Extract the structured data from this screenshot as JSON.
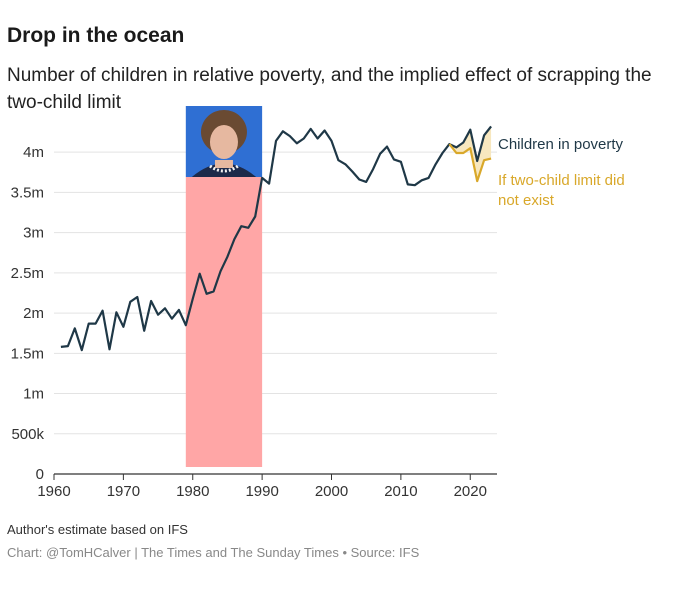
{
  "title": "Drop in the ocean",
  "subtitle": "Number of children in relative poverty, and the implied effect of scrapping the two-child limit",
  "note": "Author's estimate based on IFS",
  "credit": "Chart: @TomHCalver | The Times and The Sunday Times • Source: IFS",
  "colors": {
    "poverty": "#1f3847",
    "no_limit": "#d9a82a",
    "no_limit_fill": "#f7e7bf",
    "highlight": "#ffa6a6",
    "grid": "#e3e3e3",
    "axis": "#333333"
  },
  "chart_data": {
    "type": "line",
    "xlim": [
      1960,
      2024
    ],
    "ylim": [
      0,
      4400000
    ],
    "yticks": [
      {
        "value": 0,
        "label": "0"
      },
      {
        "value": 500000,
        "label": "500k"
      },
      {
        "value": 1000000,
        "label": "1m"
      },
      {
        "value": 1500000,
        "label": "1.5m"
      },
      {
        "value": 2000000,
        "label": "2m"
      },
      {
        "value": 2500000,
        "label": "2.5m"
      },
      {
        "value": 3000000,
        "label": "3m"
      },
      {
        "value": 3500000,
        "label": "3.5m"
      },
      {
        "value": 4000000,
        "label": "4m"
      }
    ],
    "xticks": [
      {
        "value": 1960,
        "label": "1960"
      },
      {
        "value": 1970,
        "label": "1970"
      },
      {
        "value": 1980,
        "label": "1980"
      },
      {
        "value": 1990,
        "label": "1990"
      },
      {
        "value": 2000,
        "label": "2000"
      },
      {
        "value": 2010,
        "label": "2010"
      },
      {
        "value": 2020,
        "label": "2020"
      }
    ],
    "highlight_range": [
      1979,
      1990
    ],
    "highlight_image": "margaret-thatcher-portrait",
    "series": [
      {
        "name": "Children in poverty",
        "x": [
          1961,
          1962,
          1963,
          1964,
          1965,
          1966,
          1967,
          1968,
          1969,
          1970,
          1971,
          1972,
          1973,
          1974,
          1975,
          1976,
          1977,
          1978,
          1979,
          1980,
          1981,
          1982,
          1983,
          1984,
          1985,
          1986,
          1987,
          1988,
          1989,
          1990,
          1991,
          1992,
          1993,
          1994,
          1995,
          1996,
          1997,
          1998,
          1999,
          2000,
          2001,
          2002,
          2003,
          2004,
          2005,
          2006,
          2007,
          2008,
          2009,
          2010,
          2011,
          2012,
          2013,
          2014,
          2015,
          2016,
          2017,
          2018,
          2019,
          2020,
          2021,
          2022,
          2023
        ],
        "y": [
          1580000,
          1590000,
          1810000,
          1540000,
          1870000,
          1870000,
          2030000,
          1550000,
          2010000,
          1830000,
          2140000,
          2200000,
          1780000,
          2150000,
          1980000,
          2060000,
          1930000,
          2040000,
          1850000,
          2180000,
          2490000,
          2240000,
          2270000,
          2520000,
          2700000,
          2920000,
          3080000,
          3060000,
          3200000,
          3680000,
          3610000,
          4140000,
          4260000,
          4200000,
          4110000,
          4170000,
          4290000,
          4170000,
          4270000,
          4140000,
          3900000,
          3850000,
          3760000,
          3660000,
          3630000,
          3790000,
          3980000,
          4070000,
          3910000,
          3880000,
          3600000,
          3590000,
          3650000,
          3680000,
          3850000,
          3990000,
          4100000,
          4060000,
          4120000,
          4280000,
          3890000,
          4210000,
          4320000
        ]
      },
      {
        "name": "If two-child limit did not exist",
        "x": [
          2017,
          2018,
          2019,
          2020,
          2021,
          2022,
          2023
        ],
        "y": [
          4100000,
          3990000,
          3990000,
          4050000,
          3640000,
          3900000,
          3920000
        ]
      }
    ]
  }
}
